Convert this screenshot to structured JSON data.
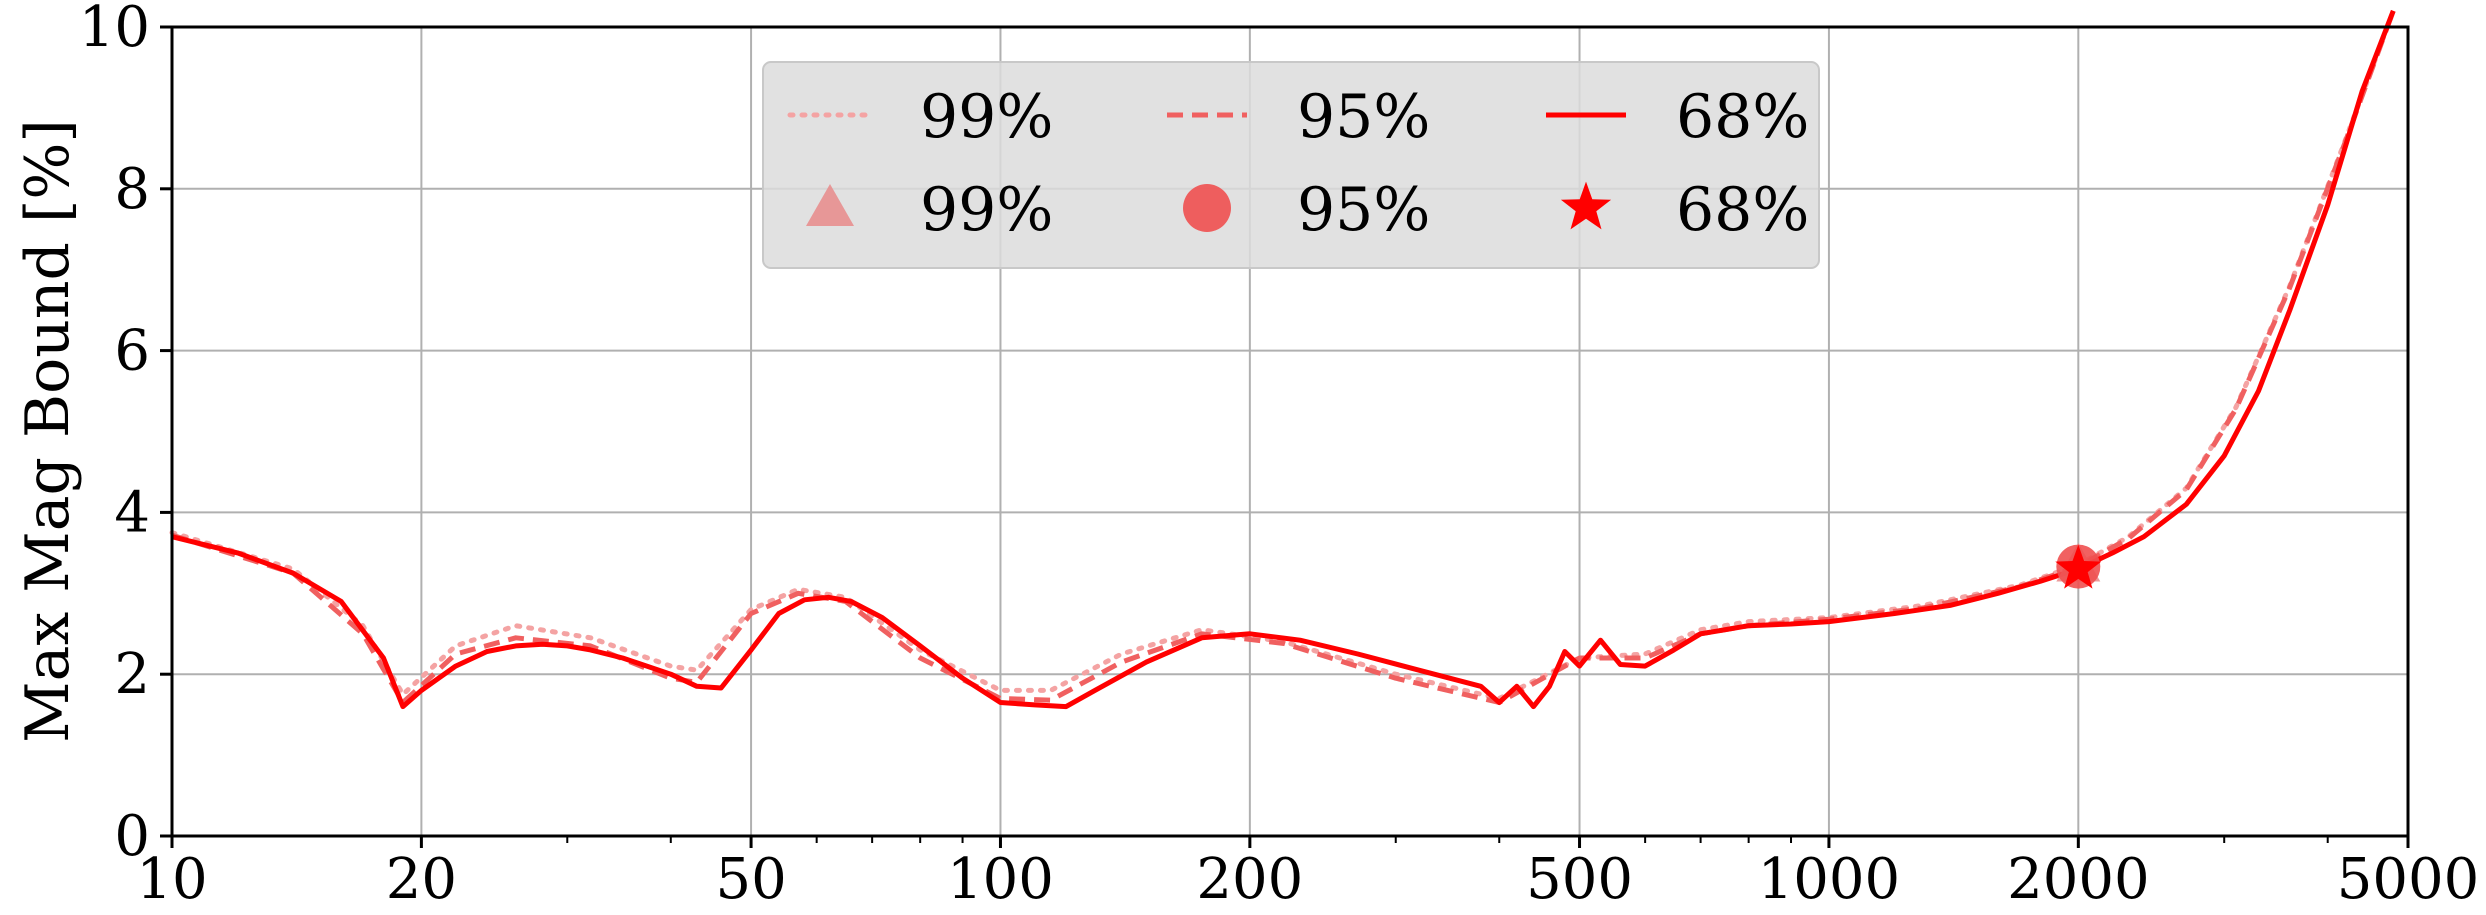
{
  "chart_data": {
    "type": "line",
    "title": "",
    "xlabel": "",
    "ylabel": "Max Mag Bound [%]",
    "x_scale": "log",
    "xlim": [
      10,
      5000
    ],
    "ylim": [
      0,
      10
    ],
    "x_ticks": [
      10,
      20,
      50,
      100,
      200,
      500,
      1000,
      2000,
      5000
    ],
    "x_tick_labels": [
      "10",
      "20",
      "50",
      "100",
      "200",
      "500",
      "1000",
      "2000",
      "5000"
    ],
    "y_ticks": [
      0,
      2,
      4,
      6,
      8,
      10
    ],
    "y_tick_labels": [
      "0",
      "2",
      "4",
      "6",
      "8",
      "10"
    ],
    "grid": true,
    "legend_position": "top-center",
    "series": [
      {
        "name": "99%",
        "style": "dotted",
        "color": "#f4a3a3",
        "x": [
          10,
          14,
          17,
          19,
          22,
          26,
          32,
          40,
          43,
          50,
          57,
          65,
          80,
          100,
          115,
          140,
          175,
          220,
          300,
          400,
          500,
          600,
          700,
          800,
          1000,
          1300,
          1700,
          2000,
          2300,
          2700,
          3100,
          3600,
          4200,
          4800
        ],
        "y": [
          3.75,
          3.3,
          2.6,
          1.75,
          2.35,
          2.6,
          2.45,
          2.1,
          2.05,
          2.8,
          3.05,
          2.95,
          2.3,
          1.8,
          1.8,
          2.25,
          2.55,
          2.4,
          2.0,
          1.7,
          2.2,
          2.25,
          2.55,
          2.65,
          2.7,
          2.85,
          3.1,
          3.35,
          3.7,
          4.3,
          5.3,
          6.8,
          8.6,
          10.2
        ]
      },
      {
        "name": "95%",
        "style": "dashed",
        "color": "#f06060",
        "x": [
          10,
          14,
          17,
          19,
          22,
          26,
          32,
          40,
          43,
          50,
          57,
          65,
          80,
          100,
          115,
          140,
          175,
          220,
          300,
          400,
          500,
          600,
          700,
          800,
          1000,
          1300,
          1700,
          2000,
          2300,
          2700,
          3100,
          3600,
          4200,
          4800
        ],
        "y": [
          3.72,
          3.25,
          2.5,
          1.65,
          2.25,
          2.45,
          2.35,
          1.95,
          1.9,
          2.75,
          3.0,
          2.9,
          2.2,
          1.7,
          1.68,
          2.15,
          2.5,
          2.38,
          1.95,
          1.65,
          2.2,
          2.2,
          2.5,
          2.6,
          2.68,
          2.82,
          3.08,
          3.33,
          3.68,
          4.28,
          5.28,
          6.78,
          8.58,
          10.2
        ]
      },
      {
        "name": "68%",
        "style": "solid",
        "color": "#ff0000",
        "x": [
          10,
          12,
          14,
          16,
          18,
          19,
          20,
          22,
          24,
          26,
          28,
          30,
          32,
          35,
          40,
          43,
          46,
          50,
          54,
          58,
          62,
          66,
          72,
          80,
          90,
          100,
          110,
          120,
          130,
          150,
          175,
          200,
          230,
          270,
          320,
          380,
          400,
          420,
          440,
          460,
          480,
          500,
          530,
          560,
          600,
          650,
          700,
          750,
          800,
          900,
          1000,
          1200,
          1400,
          1600,
          1800,
          2000,
          2200,
          2400,
          2700,
          3000,
          3300,
          3600,
          4000,
          4400,
          4800
        ],
        "y": [
          3.7,
          3.5,
          3.25,
          2.9,
          2.2,
          1.6,
          1.8,
          2.1,
          2.28,
          2.35,
          2.37,
          2.35,
          2.3,
          2.2,
          2.0,
          1.85,
          1.83,
          2.3,
          2.75,
          2.92,
          2.95,
          2.9,
          2.7,
          2.35,
          1.95,
          1.65,
          1.62,
          1.6,
          1.8,
          2.15,
          2.45,
          2.5,
          2.42,
          2.25,
          2.05,
          1.85,
          1.65,
          1.85,
          1.6,
          1.85,
          2.28,
          2.1,
          2.42,
          2.12,
          2.1,
          2.3,
          2.5,
          2.55,
          2.6,
          2.62,
          2.65,
          2.75,
          2.85,
          3.0,
          3.15,
          3.3,
          3.5,
          3.7,
          4.1,
          4.7,
          5.5,
          6.5,
          7.8,
          9.2,
          10.2
        ]
      }
    ],
    "markers": [
      {
        "name": "99%",
        "shape": "triangle",
        "color": "#e88a8a",
        "x": 2000,
        "y": 3.35
      },
      {
        "name": "95%",
        "shape": "circle",
        "color": "#f05050",
        "x": 2000,
        "y": 3.33
      },
      {
        "name": "68%",
        "shape": "star",
        "color": "#ff0000",
        "x": 2000,
        "y": 3.3
      }
    ]
  }
}
